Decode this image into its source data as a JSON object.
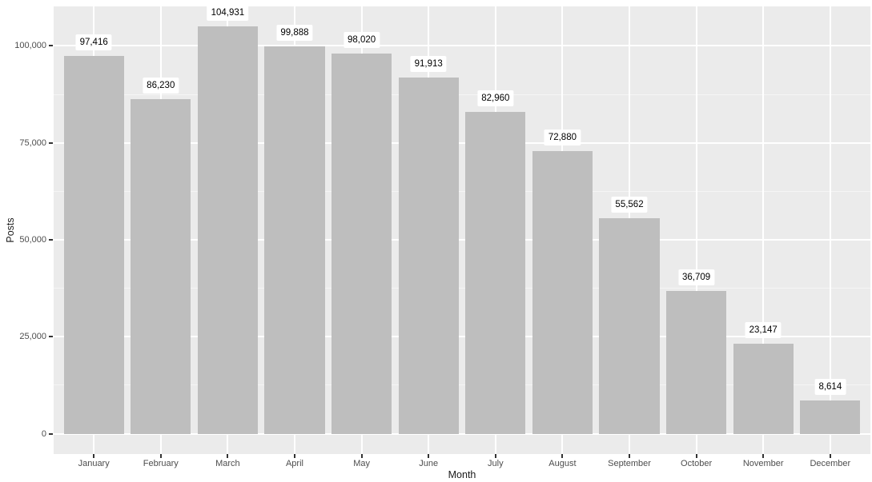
{
  "chart_data": {
    "type": "bar",
    "title": "",
    "xlabel": "Month",
    "ylabel": "Posts",
    "categories": [
      "January",
      "February",
      "March",
      "April",
      "May",
      "June",
      "July",
      "August",
      "September",
      "October",
      "November",
      "December"
    ],
    "values": [
      97416,
      86230,
      104931,
      99888,
      98020,
      91913,
      82960,
      72880,
      55562,
      36709,
      23147,
      8614
    ],
    "value_labels": [
      "97,416",
      "86,230",
      "104,931",
      "99,888",
      "98,020",
      "91,913",
      "82,960",
      "72,880",
      "55,562",
      "36,709",
      "23,147",
      "8,614"
    ],
    "yticks": [
      0,
      25000,
      50000,
      75000,
      100000
    ],
    "ytick_labels": [
      "0",
      "25,000",
      "50,000",
      "75,000",
      "100,000"
    ],
    "ylim": [
      0,
      110178
    ],
    "grid": "on",
    "legend": "none",
    "colors": {
      "panel_background": "#EBEBEB",
      "bar_fill": "#BEBEBE",
      "grid_major": "#FFFFFF",
      "grid_minor": "#F5F5F5",
      "axis_text": "#4D4D4D",
      "axis_title": "#1A1A1A",
      "tick_mark": "#333333",
      "label_background": "#FFFFFF",
      "label_text": "#000000",
      "figure_background": "#FFFFFF"
    }
  }
}
